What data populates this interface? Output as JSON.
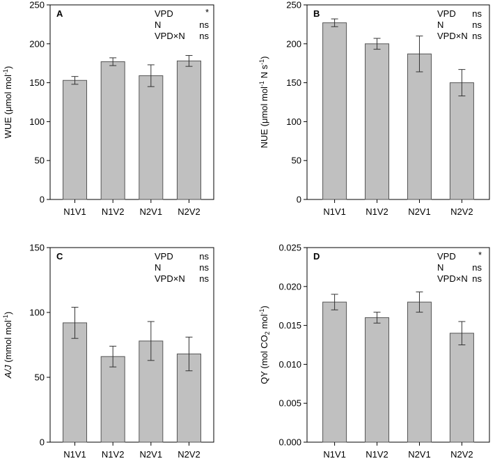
{
  "chart_data": [
    {
      "panel_label": "A",
      "type": "bar",
      "categories": [
        "N1V1",
        "N1V2",
        "N2V1",
        "N2V2"
      ],
      "values": [
        153,
        177,
        159,
        178
      ],
      "errors": [
        5,
        5,
        14,
        7
      ],
      "ylabel_main": "WUE (μmol mol",
      "ylabel_sup": "-1",
      "ylabel_end": ")",
      "ylim": [
        0,
        250
      ],
      "yticks": [
        0,
        50,
        100,
        150,
        200,
        250
      ],
      "ytick_labels": [
        "0",
        "50",
        "100",
        "150",
        "200",
        "250"
      ],
      "bar_color": "#c0c0c0",
      "stats": [
        {
          "term": "VPD",
          "sig": "*"
        },
        {
          "term": "N",
          "sig": "ns"
        },
        {
          "term": "VPD×N",
          "sig": "ns"
        }
      ]
    },
    {
      "panel_label": "B",
      "type": "bar",
      "categories": [
        "N1V1",
        "N1V2",
        "N2V1",
        "N2V2"
      ],
      "values": [
        227,
        200,
        187,
        150
      ],
      "errors": [
        5,
        7,
        23,
        17
      ],
      "ylabel_main": "NUE (μmol mol",
      "ylabel_sup": "-1",
      "ylabel_mid": " N s",
      "ylabel_sup2": "-1",
      "ylabel_end": ")",
      "ylim": [
        0,
        250
      ],
      "yticks": [
        0,
        50,
        100,
        150,
        200,
        250
      ],
      "ytick_labels": [
        "0",
        "50",
        "100",
        "150",
        "200",
        "250"
      ],
      "bar_color": "#c0c0c0",
      "stats": [
        {
          "term": "VPD",
          "sig": "ns"
        },
        {
          "term": "N",
          "sig": "ns"
        },
        {
          "term": "VPD×N",
          "sig": "ns"
        }
      ]
    },
    {
      "panel_label": "C",
      "type": "bar",
      "categories": [
        "N1V1",
        "N1V2",
        "N2V1",
        "N2V2"
      ],
      "values": [
        92,
        66,
        78,
        68
      ],
      "errors": [
        12,
        8,
        15,
        13
      ],
      "ylabel_italic": "A/J",
      "ylabel_main": " (mmol mol",
      "ylabel_sup": "-1",
      "ylabel_end": ")",
      "ylim": [
        0,
        150
      ],
      "yticks": [
        0,
        50,
        100,
        150
      ],
      "ytick_labels": [
        "0",
        "50",
        "100",
        "150"
      ],
      "bar_color": "#c0c0c0",
      "stats": [
        {
          "term": "VPD",
          "sig": "ns"
        },
        {
          "term": "N",
          "sig": "ns"
        },
        {
          "term": "VPD×N",
          "sig": "ns"
        }
      ]
    },
    {
      "panel_label": "D",
      "type": "bar",
      "categories": [
        "N1V1",
        "N1V2",
        "N2V1",
        "N2V2"
      ],
      "values": [
        0.018,
        0.016,
        0.018,
        0.014
      ],
      "errors": [
        0.001,
        0.0007,
        0.0013,
        0.0015
      ],
      "ylabel_main": "QY (mol CO",
      "ylabel_sub": "2",
      "ylabel_mid": " mol",
      "ylabel_sup": "-1",
      "ylabel_end": ")",
      "ylim": [
        0,
        0.025
      ],
      "yticks": [
        0,
        0.005,
        0.01,
        0.015,
        0.02,
        0.025
      ],
      "ytick_labels": [
        "0.000",
        "0.005",
        "0.010",
        "0.015",
        "0.020",
        "0.025"
      ],
      "bar_color": "#c0c0c0",
      "stats": [
        {
          "term": "VPD",
          "sig": "*"
        },
        {
          "term": "N",
          "sig": "ns"
        },
        {
          "term": "VPD×N",
          "sig": "ns"
        }
      ]
    }
  ]
}
